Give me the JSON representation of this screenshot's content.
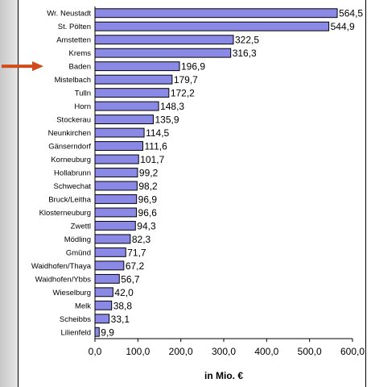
{
  "chart_data": {
    "type": "bar",
    "orientation": "horizontal",
    "categories": [
      "Wr. Neustadt",
      "St. Pölten",
      "Amstetten",
      "Krems",
      "Baden",
      "Mistelbach",
      "Tulln",
      "Horn",
      "Stockerau",
      "Neunkirchen",
      "Gänserndorf",
      "Korneuburg",
      "Hollabrunn",
      "Schwechat",
      "Bruck/Leitha",
      "Klosterneuburg",
      "Zwettl",
      "Mödling",
      "Gmünd",
      "Waidhofen/Thaya",
      "Waidhofen/Ybbs",
      "Wieselburg",
      "Melk",
      "Scheibbs",
      "Lilienfeld"
    ],
    "values": [
      564.5,
      544.9,
      322.5,
      316.3,
      196.9,
      179.7,
      172.2,
      148.3,
      135.9,
      114.5,
      111.6,
      101.7,
      99.2,
      98.2,
      96.9,
      96.6,
      94.3,
      82.3,
      71.7,
      67.2,
      56.7,
      42.0,
      38.8,
      33.1,
      9.9
    ],
    "value_labels": [
      "564,5",
      "544,9",
      "322,5",
      "316,3",
      "196,9",
      "179,7",
      "172,2",
      "148,3",
      "135,9",
      "114,5",
      "111,6",
      "101,7",
      "99,2",
      "98,2",
      "96,9",
      "96,6",
      "94,3",
      "82,3",
      "71,7",
      "67,2",
      "56,7",
      "42,0",
      "38,8",
      "33,1",
      "9,9"
    ],
    "xlim": [
      0,
      600
    ],
    "ticks": [
      0,
      100,
      200,
      300,
      400,
      500,
      600
    ],
    "tick_labels": [
      "0,0",
      "100,0",
      "200,0",
      "300,0",
      "400,0",
      "500,0",
      "600,0"
    ],
    "xlabel": "in Mio. €",
    "bar_color": "#8a8ae6",
    "bar_edge_color": "#000000",
    "highlight_category": "Baden",
    "highlight_arrow_color": "#d04a1a"
  }
}
